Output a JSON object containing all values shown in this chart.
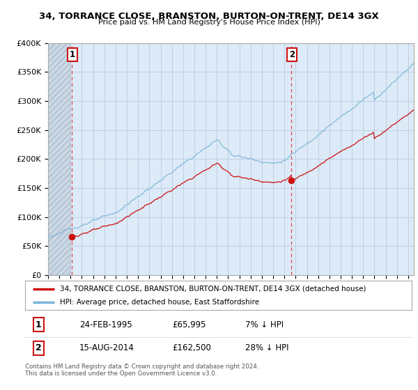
{
  "title": "34, TORRANCE CLOSE, BRANSTON, BURTON-ON-TRENT, DE14 3GX",
  "subtitle": "Price paid vs. HM Land Registry's House Price Index (HPI)",
  "hpi_color": "#7ab4d8",
  "price_color": "#cc1111",
  "background_color": "#ffffff",
  "plot_bg_color": "#ddeaf7",
  "hatch_color": "#c8d8e8",
  "grid_color": "#b8cce0",
  "ylim": [
    0,
    400000
  ],
  "yticks": [
    0,
    50000,
    100000,
    150000,
    200000,
    250000,
    300000,
    350000,
    400000
  ],
  "ytick_labels": [
    "£0",
    "£50K",
    "£100K",
    "£150K",
    "£200K",
    "£250K",
    "£300K",
    "£350K",
    "£400K"
  ],
  "xlim_start": 1993.0,
  "xlim_end": 2025.5,
  "sale1_x": 1995.12,
  "sale1_y": 65995,
  "sale1_label": "1",
  "sale1_date": "24-FEB-1995",
  "sale1_price": "£65,995",
  "sale1_hpi": "7% ↓ HPI",
  "sale2_x": 2014.62,
  "sale2_y": 162500,
  "sale2_label": "2",
  "sale2_date": "15-AUG-2014",
  "sale2_price": "£162,500",
  "sale2_hpi": "28% ↓ HPI",
  "legend_label1": "34, TORRANCE CLOSE, BRANSTON, BURTON-ON-TRENT, DE14 3GX (detached house)",
  "legend_label2": "HPI: Average price, detached house, East Staffordshire",
  "footer": "Contains HM Land Registry data © Crown copyright and database right 2024.\nThis data is licensed under the Open Government Licence v3.0."
}
